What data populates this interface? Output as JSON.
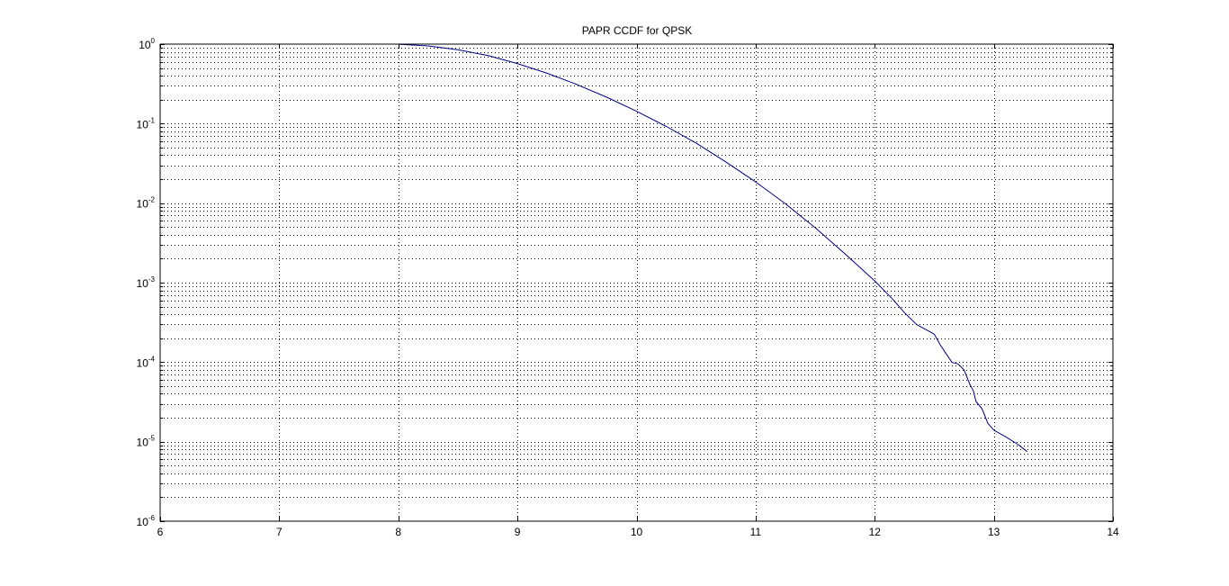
{
  "chart_data": {
    "type": "line",
    "title": "PAPR CCDF for QPSK",
    "xlabel": "",
    "ylabel": "",
    "xlim": [
      6,
      14
    ],
    "ylim": [
      1e-06,
      1
    ],
    "yscale": "log",
    "grid": "on (major and minor, dotted)",
    "x_ticks": [
      6,
      7,
      8,
      9,
      10,
      11,
      12,
      13,
      14
    ],
    "x_tick_labels": [
      "6",
      "7",
      "8",
      "9",
      "10",
      "11",
      "12",
      "13",
      "14"
    ],
    "y_ticks": [
      1e-06,
      1e-05,
      0.0001,
      0.001,
      0.01,
      0.1,
      1
    ],
    "y_tick_labels": [
      {
        "base": "10",
        "exp": "-6"
      },
      {
        "base": "10",
        "exp": "-5"
      },
      {
        "base": "10",
        "exp": "-4"
      },
      {
        "base": "10",
        "exp": "-3"
      },
      {
        "base": "10",
        "exp": "-2"
      },
      {
        "base": "10",
        "exp": "-1"
      },
      {
        "base": "10",
        "exp": "0"
      }
    ],
    "series": [
      {
        "color": "#00007f",
        "x": [
          8.0,
          8.25,
          8.5,
          8.75,
          9.0,
          9.25,
          9.5,
          9.75,
          10.0,
          10.25,
          10.5,
          10.75,
          11.0,
          11.25,
          11.5,
          11.75,
          12.0,
          12.15,
          12.25,
          12.35,
          12.5,
          12.55,
          12.6,
          12.65,
          12.7,
          12.75,
          12.8,
          12.83,
          12.85,
          12.9,
          12.95,
          13.0,
          13.1,
          13.2,
          13.28
        ],
        "y": [
          0.998,
          0.95,
          0.85,
          0.72,
          0.57,
          0.43,
          0.31,
          0.215,
          0.143,
          0.092,
          0.057,
          0.033,
          0.0185,
          0.0098,
          0.0049,
          0.0023,
          0.00105,
          0.00062,
          0.00042,
          0.000298,
          0.000225,
          0.000165,
          0.000127,
          9.9e-05,
          9.5e-05,
          8e-05,
          5.2e-05,
          4.3e-05,
          3.2e-05,
          2.6e-05,
          1.7e-05,
          1.4e-05,
          1.15e-05,
          9.3e-06,
          7.5e-06
        ]
      }
    ]
  }
}
